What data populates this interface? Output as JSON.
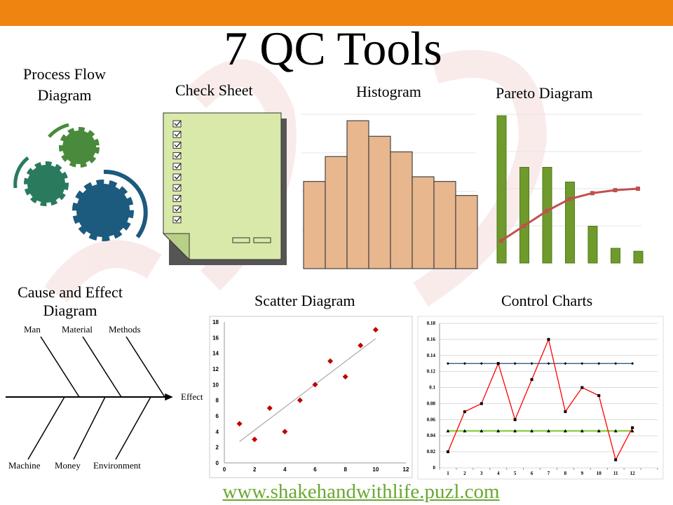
{
  "colors": {
    "top_bar": "#ef8410",
    "check_sheet": "#d8e9a9",
    "histogram_bar": "#e8b78e",
    "pareto_bar": "#6f9a2c",
    "pareto_line": "#c0504d",
    "scatter_point": "#c00000",
    "control_line": "#ff0000",
    "ucl": "#1f4e79",
    "lcl": "#92d050",
    "url": "#6aa832"
  },
  "title": "7 QC Tools",
  "labels": {
    "process_flow": [
      "Process Flow",
      "Diagram"
    ],
    "check_sheet": "Check Sheet",
    "histogram": "Histogram",
    "pareto": "Pareto Diagram",
    "cause_effect": [
      "Cause and Effect",
      "Diagram"
    ],
    "scatter": "Scatter Diagram",
    "control": "Control Charts"
  },
  "fishbone": {
    "effect": "Effect",
    "top": [
      "Man",
      "Material",
      "Methods"
    ],
    "bottom": [
      "Machine",
      "Money",
      "Environment"
    ]
  },
  "check_sheet": {
    "checkbox_count": 10
  },
  "chart_data": [
    {
      "type": "bar",
      "name": "histogram",
      "values": [
        56,
        72,
        95,
        85,
        75,
        59,
        56,
        47
      ]
    },
    {
      "type": "bar",
      "name": "pareto",
      "values": [
        100,
        65,
        65,
        55,
        25,
        10,
        8
      ],
      "cumulative_line": [
        15,
        25,
        35,
        43,
        47,
        49,
        50
      ]
    },
    {
      "type": "scatter",
      "x": [
        1,
        2,
        3,
        4,
        5,
        6,
        7,
        8,
        9,
        10
      ],
      "y": [
        5,
        3,
        7,
        4,
        8,
        10,
        13,
        11,
        15,
        17
      ],
      "trendline": "linear",
      "xlim": [
        0,
        12
      ],
      "ylim": [
        0,
        18
      ],
      "xticks": [
        "0",
        "2",
        "4",
        "6",
        "8",
        "10",
        "12"
      ],
      "yticks": [
        "0",
        "2",
        "4",
        "6",
        "8",
        "10",
        "12",
        "14",
        "16",
        "18"
      ],
      "grid": false
    },
    {
      "type": "line",
      "categories": [
        "1",
        "2",
        "3",
        "4",
        "5",
        "6",
        "7",
        "8",
        "9",
        "10",
        "11",
        "12"
      ],
      "series": [
        {
          "values": [
            0.02,
            0.07,
            0.08,
            0.13,
            0.06,
            0.11,
            0.16,
            0.07,
            0.1,
            0.09,
            0.01,
            0.05
          ],
          "marker": "square"
        },
        {
          "values": [
            0.13,
            0.13,
            0.13,
            0.13,
            0.13,
            0.13,
            0.13,
            0.13,
            0.13,
            0.13,
            0.13,
            0.13
          ],
          "marker": "diamond"
        },
        {
          "values": [
            0.046,
            0.046,
            0.046,
            0.046,
            0.046,
            0.046,
            0.046,
            0.046,
            0.046,
            0.046,
            0.046,
            0.046
          ],
          "marker": "triangle"
        }
      ],
      "ylim": [
        0,
        0.18
      ],
      "yticks": [
        "0",
        "0.02",
        "0.04",
        "0.06",
        "0.08",
        "0.1",
        "0.12",
        "0.14",
        "0.16",
        "0.18"
      ],
      "grid": true
    }
  ],
  "url": "www.shakehandwithlife.puzl.com"
}
